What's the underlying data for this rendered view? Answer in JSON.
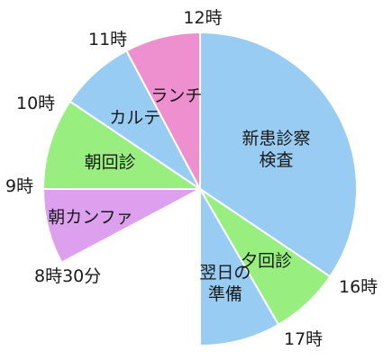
{
  "chart_data": {
    "type": "pie",
    "title": "",
    "unit": "minutes from 8:30",
    "start_time": "8:30",
    "slices": [
      {
        "label": "新患診察\n検査",
        "start": "12:00",
        "end": "16:00",
        "color": "#99CCF2"
      },
      {
        "label": "夕回診",
        "start": "16:00",
        "end": "17:00",
        "color": "#99EE80"
      },
      {
        "label": "翌日の\n準備",
        "start": "17:00",
        "end": "18:00",
        "color": "#99CCF2"
      },
      {
        "label": "朝カンファ",
        "start": "8:30",
        "end": "9:00",
        "color": "#DDA0EE"
      },
      {
        "label": "朝回診",
        "start": "9:00",
        "end": "10:00",
        "color": "#99EE80"
      },
      {
        "label": "カルテ",
        "start": "10:00",
        "end": "11:00",
        "color": "#99CCF2"
      },
      {
        "label": "ランチ",
        "start": "11:00",
        "end": "12:00",
        "color": "#EE90D0"
      }
    ],
    "hour_labels": [
      {
        "text": "12時",
        "time": "12:00"
      },
      {
        "text": "16時",
        "time": "16:00"
      },
      {
        "text": "17時",
        "time": "17:00"
      },
      {
        "text": "8時30分",
        "time": "8:30"
      },
      {
        "text": "9時",
        "time": "9:00"
      },
      {
        "text": "10時",
        "time": "10:00"
      },
      {
        "text": "11時",
        "time": "11:00"
      }
    ]
  }
}
